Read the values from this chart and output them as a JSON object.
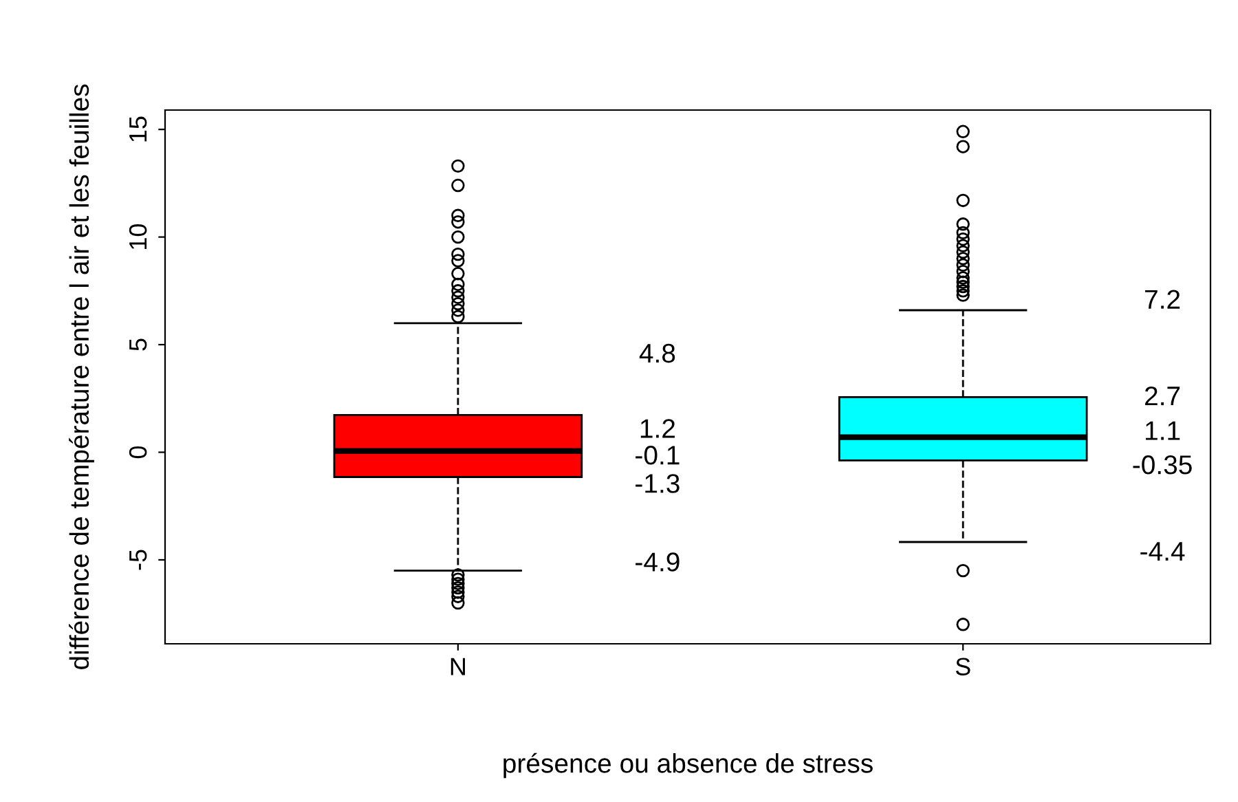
{
  "chart_data": {
    "type": "box",
    "xlabel": "présence ou absence de stress",
    "ylabel": "différence de température entre l air et les feuilles",
    "categories": [
      "N",
      "S"
    ],
    "colors": [
      "#ff0000",
      "#00ffff"
    ],
    "boxes": [
      {
        "low": -5.5,
        "q1": -1.15,
        "median": 0.06,
        "q3": 1.73,
        "high": 6.0,
        "outliers": [
          6.3,
          6.6,
          6.9,
          7.2,
          7.5,
          7.8,
          8.3,
          8.9,
          9.2,
          10.0,
          10.7,
          11.0,
          12.4,
          13.3,
          -5.7,
          -5.9,
          -6.1,
          -6.3,
          -6.5,
          -6.7,
          -7.0
        ]
      },
      {
        "low": -4.17,
        "q1": -0.38,
        "median": 0.7,
        "q3": 2.56,
        "high": 6.6,
        "outliers": [
          7.3,
          7.5,
          7.7,
          7.9,
          8.1,
          8.4,
          8.7,
          9.0,
          9.3,
          9.6,
          9.9,
          10.2,
          10.6,
          11.7,
          14.2,
          14.9,
          -5.5,
          -8.0
        ]
      }
    ],
    "ylim": [
      -8.9,
      15.9
    ],
    "yticks": [
      -5,
      0,
      5,
      10,
      15
    ],
    "grid": false,
    "annotations": [
      "4.8",
      "1.2",
      "-0.1",
      "-1.3",
      "-4.9",
      "7.2",
      "2.7",
      "1.1",
      "-0.35",
      "-4.4"
    ]
  }
}
